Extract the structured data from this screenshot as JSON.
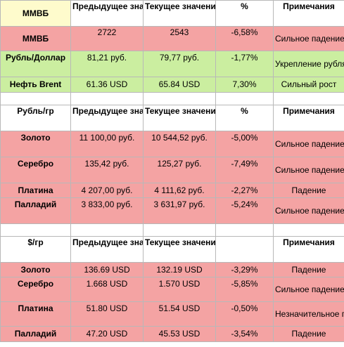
{
  "tables": [
    {
      "header": {
        "label": "ММВБ",
        "label_in_header": false,
        "prev": "Предыдущее значение",
        "curr": "Текущее значение",
        "pct": "%",
        "note": "Примечания"
      },
      "rows": [
        {
          "name": "ММВБ",
          "prev": "2722",
          "curr": "2543",
          "pct": "-6,58%",
          "note": "Сильное падение",
          "color": "pink"
        },
        {
          "name": "Рубль/Доллар",
          "prev": "81,21 руб.",
          "curr": "79,77 руб.",
          "pct": "-1,77%",
          "note": "Укрепление рубля",
          "color": "green"
        },
        {
          "name": "Нефть Brent",
          "prev": "61.36 USD",
          "curr": "65.84 USD",
          "pct": "7,30%",
          "note": "Сильный рост",
          "color": "green"
        }
      ]
    },
    {
      "header": {
        "label": "Рубль/гр",
        "prev": "Предыдущее значение",
        "curr": "Текущее значение",
        "pct": "%",
        "note": "Примечания"
      },
      "rows": [
        {
          "name": "Золото",
          "prev": "11 100,00 руб.",
          "curr": "10 544,52 руб.",
          "pct": "-5,00%",
          "note": "Сильное падение",
          "color": "pink"
        },
        {
          "name": "Серебро",
          "prev": "135,42 руб.",
          "curr": "125,27 руб.",
          "pct": "-7,49%",
          "note": "Сильное падение",
          "color": "pink"
        },
        {
          "name": "Платина",
          "prev": "4 207,00 руб.",
          "curr": "4 111,62 руб.",
          "pct": "-2,27%",
          "note": "Падение",
          "color": "pink"
        },
        {
          "name": "Палладий",
          "prev": "3 833,00 руб.",
          "curr": "3 631,97 руб.",
          "pct": "-5,24%",
          "note": "Сильное падение",
          "color": "pink"
        }
      ]
    },
    {
      "header": {
        "label": "$/гр",
        "prev": "Предыдущее значение",
        "curr": "Текущее значение",
        "pct": "",
        "note": "Примечания"
      },
      "rows": [
        {
          "name": "Золото",
          "prev": "136.69 USD",
          "curr": "132.19 USD",
          "pct": "-3,29%",
          "note": "Падение",
          "color": "pink"
        },
        {
          "name": "Серебро",
          "prev": "1.668 USD",
          "curr": "1.570 USD",
          "pct": "-5,85%",
          "note": "Сильное падение",
          "color": "pink"
        },
        {
          "name": "Платина",
          "prev": "51.80 USD",
          "curr": "51.54 USD",
          "pct": "-0,50%",
          "note": "Незначительное падение",
          "color": "pink"
        },
        {
          "name": "Палладий",
          "prev": "47.20 USD",
          "curr": "45.53 USD",
          "pct": "-3,54%",
          "note": "Падение",
          "color": "pink"
        }
      ]
    }
  ],
  "colors": {
    "pink": "#f4a3a3",
    "green": "#cbeea0",
    "yellow": "#fefbcc"
  }
}
